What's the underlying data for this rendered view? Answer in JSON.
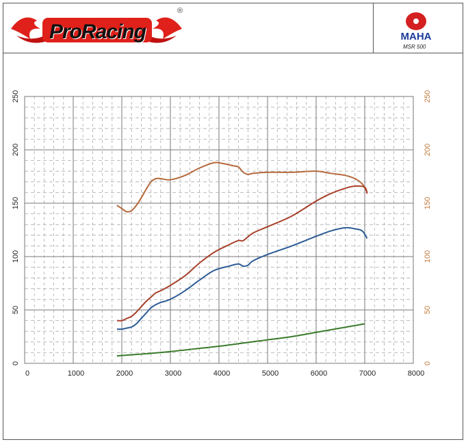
{
  "header": {
    "brand": "ProRacing",
    "registered_mark": "®",
    "dyno_brand": "MAHA",
    "dyno_model": "MSR 500"
  },
  "colors": {
    "torque": "#b5683a",
    "power": "#a8402a",
    "power_alt": "#2b5b95",
    "loss": "#3a7a2a",
    "right_axis": "#c07a3a",
    "brand_red": "#e0201a"
  },
  "chart_data": {
    "type": "line",
    "xlim": [
      0,
      8000
    ],
    "ylim": [
      0,
      250
    ],
    "y2lim": [
      0,
      250
    ],
    "grid": true,
    "x_ticks": [
      "0",
      "1000",
      "2000",
      "3000",
      "4000",
      "5000",
      "6000",
      "7000",
      "8000"
    ],
    "y_ticks": [
      "0",
      "50",
      "100",
      "150",
      "200",
      "250"
    ],
    "y2_ticks": [
      "0",
      "50",
      "100",
      "150",
      "200",
      "250"
    ],
    "series": [
      {
        "color": "#b5683a",
        "x": [
          1900,
          2000,
          2100,
          2200,
          2300,
          2400,
          2500,
          2600,
          2700,
          2800,
          3000,
          3300,
          3600,
          3900,
          4100,
          4300,
          4400,
          4500,
          4600,
          4700,
          5000,
          5500,
          6000,
          6300,
          6600,
          6800,
          6950,
          7050
        ],
        "y": [
          148,
          145,
          142,
          143,
          148,
          155,
          163,
          170,
          173,
          173,
          172,
          176,
          183,
          188,
          187,
          185,
          184,
          179,
          177,
          178,
          179,
          179,
          180,
          178,
          176,
          173,
          168,
          160
        ]
      },
      {
        "color": "#a8402a",
        "x": [
          1900,
          2000,
          2100,
          2200,
          2300,
          2400,
          2500,
          2600,
          2700,
          2800,
          3000,
          3300,
          3600,
          3900,
          4200,
          4400,
          4500,
          4700,
          5000,
          5500,
          6000,
          6300,
          6600,
          6800,
          7000,
          7050
        ],
        "y": [
          40,
          40,
          42,
          44,
          48,
          53,
          58,
          62,
          66,
          68,
          73,
          82,
          94,
          104,
          111,
          115,
          115,
          122,
          128,
          138,
          152,
          159,
          164,
          166,
          165,
          159
        ]
      },
      {
        "color": "#2b5b95",
        "x": [
          1900,
          2000,
          2100,
          2200,
          2300,
          2400,
          2500,
          2600,
          2700,
          2800,
          3000,
          3300,
          3600,
          3900,
          4200,
          4400,
          4500,
          4600,
          4700,
          5000,
          5500,
          6000,
          6300,
          6600,
          6800,
          6950,
          7050
        ],
        "y": [
          32,
          32,
          33,
          34,
          37,
          42,
          47,
          52,
          55,
          57,
          60,
          68,
          78,
          87,
          91,
          93,
          91,
          92,
          96,
          102,
          110,
          119,
          124,
          127,
          126,
          124,
          117
        ]
      },
      {
        "color": "#3a7a2a",
        "x": [
          1900,
          2500,
          3000,
          3500,
          4000,
          4500,
          5000,
          5500,
          6000,
          6500,
          7000
        ],
        "y": [
          7,
          9,
          11,
          13.5,
          16,
          19,
          22,
          25,
          29,
          33,
          37
        ]
      }
    ]
  }
}
